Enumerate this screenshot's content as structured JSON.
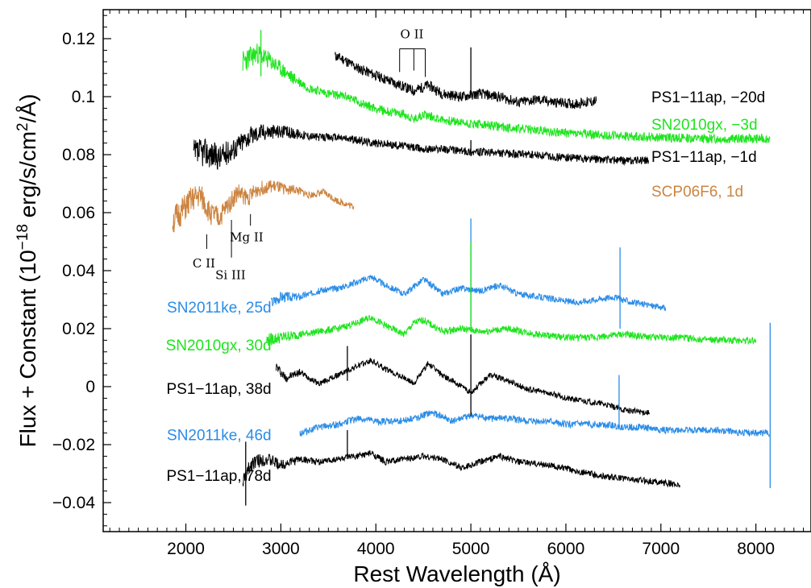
{
  "chart_data": {
    "type": "line",
    "xlabel": "Rest Wavelength (Å)",
    "ylabel": "Flux + Constant (10",
    "ylabel_exp": "−18",
    "ylabel_tail": " erg/s/cm",
    "ylabel_exp2": "2",
    "ylabel_end": "/Å)",
    "xlim": [
      1130,
      8580
    ],
    "ylim": [
      -0.05,
      0.13
    ],
    "x_ticks": [
      2000,
      3000,
      4000,
      5000,
      6000,
      7000,
      8000
    ],
    "x_tick_labels": [
      "2000",
      "3000",
      "4000",
      "5000",
      "6000",
      "7000",
      "8000"
    ],
    "y_ticks": [
      -0.04,
      -0.02,
      0,
      0.02,
      0.04,
      0.06,
      0.08,
      0.1,
      0.12
    ],
    "y_tick_labels": [
      "−0.04",
      "−0.02",
      "0",
      "0.02",
      "0.04",
      "0.06",
      "0.08",
      "0.1",
      "0.12"
    ],
    "colors": {
      "black": "#000000",
      "green": "#1ee41e",
      "blue": "#2a8ce6",
      "orange": "#cc8440"
    },
    "series": [
      {
        "name": "PS1−11ap, −20d",
        "color": "#000000",
        "noise": 0.0018,
        "seed": 11,
        "x": [
          3570,
          3650,
          3800,
          3950,
          4100,
          4250,
          4400,
          4550,
          4700,
          4900,
          5100,
          5300,
          5500,
          5700,
          5900,
          6100,
          6320
        ],
        "y": [
          0.114,
          0.113,
          0.11,
          0.108,
          0.106,
          0.104,
          0.102,
          0.104,
          0.101,
          0.1,
          0.101,
          0.1,
          0.098,
          0.099,
          0.098,
          0.0975,
          0.0985
        ]
      },
      {
        "name": "SN2010gx, −3d",
        "color": "#1ee41e",
        "noise": 0.0016,
        "seed": 23,
        "x": [
          2600,
          2650,
          2750,
          2900,
          3100,
          3300,
          3500,
          3700,
          3900,
          4100,
          4300,
          4400,
          4500,
          4700,
          4900,
          5200,
          5500,
          6000,
          6500,
          7000,
          7500,
          8000,
          8150
        ],
        "y": [
          0.112,
          0.113,
          0.115,
          0.112,
          0.107,
          0.103,
          0.101,
          0.1,
          0.097,
          0.095,
          0.094,
          0.092,
          0.094,
          0.092,
          0.091,
          0.09,
          0.089,
          0.0875,
          0.0865,
          0.086,
          0.0855,
          0.0855,
          0.0855
        ]
      },
      {
        "name": "PS1−11ap, −1d",
        "color": "#000000",
        "noise": 0.0014,
        "seed": 37,
        "x": [
          2080,
          2200,
          2350,
          2500,
          2650,
          2800,
          3000,
          3200,
          3400,
          3600,
          3800,
          4000,
          4300,
          4500,
          4700,
          5000,
          5300,
          5600,
          6000,
          6300,
          6600,
          6870
        ],
        "y": [
          0.08,
          0.081,
          0.079,
          0.082,
          0.086,
          0.088,
          0.088,
          0.087,
          0.086,
          0.086,
          0.085,
          0.084,
          0.083,
          0.082,
          0.082,
          0.081,
          0.0805,
          0.08,
          0.079,
          0.0785,
          0.078,
          0.078
        ]
      },
      {
        "name": "SCP06F6, 1d",
        "color": "#cc8440",
        "noise": 0.0012,
        "seed": 51,
        "x": [
          1860,
          1950,
          2050,
          2150,
          2250,
          2350,
          2450,
          2550,
          2650,
          2750,
          2850,
          2950,
          3050,
          3150,
          3300,
          3450,
          3600,
          3770
        ],
        "y": [
          0.057,
          0.06,
          0.064,
          0.066,
          0.06,
          0.058,
          0.063,
          0.067,
          0.065,
          0.068,
          0.069,
          0.069,
          0.068,
          0.068,
          0.066,
          0.067,
          0.064,
          0.062
        ]
      },
      {
        "name": "SN2011ke, 25d",
        "color": "#2a8ce6",
        "noise": 0.0011,
        "seed": 67,
        "x": [
          2900,
          3000,
          3200,
          3400,
          3600,
          3800,
          3950,
          4100,
          4300,
          4500,
          4700,
          4900,
          5100,
          5300,
          5500,
          5700,
          5900,
          6100,
          6300,
          6500,
          6700,
          6900,
          7050
        ],
        "y": [
          0.029,
          0.031,
          0.031,
          0.033,
          0.034,
          0.036,
          0.038,
          0.035,
          0.032,
          0.037,
          0.032,
          0.034,
          0.033,
          0.035,
          0.032,
          0.031,
          0.03,
          0.029,
          0.03,
          0.031,
          0.029,
          0.028,
          0.027
        ]
      },
      {
        "name": "SN2010gx, 30d",
        "color": "#1ee41e",
        "noise": 0.0012,
        "seed": 79,
        "x": [
          2850,
          3000,
          3200,
          3400,
          3600,
          3800,
          3950,
          4100,
          4300,
          4400,
          4500,
          4700,
          4900,
          5100,
          5400,
          5700,
          6000,
          6300,
          6600,
          6900,
          7200,
          7500,
          7800,
          8000
        ],
        "y": [
          0.016,
          0.017,
          0.018,
          0.019,
          0.02,
          0.022,
          0.024,
          0.021,
          0.018,
          0.022,
          0.023,
          0.019,
          0.02,
          0.019,
          0.02,
          0.018,
          0.017,
          0.017,
          0.018,
          0.017,
          0.017,
          0.016,
          0.016,
          0.016
        ]
      },
      {
        "name": "PS1−11ap, 38d",
        "color": "#000000",
        "noise": 0.001,
        "seed": 97,
        "x": [
          2950,
          3050,
          3200,
          3400,
          3600,
          3800,
          3950,
          4100,
          4300,
          4400,
          4550,
          4700,
          4850,
          5000,
          5200,
          5400,
          5600,
          5800,
          6000,
          6200,
          6400,
          6600,
          6880
        ],
        "y": [
          0.007,
          0.003,
          0.005,
          0.001,
          0.004,
          0.007,
          0.009,
          0.006,
          0.003,
          0.001,
          0.008,
          0.004,
          0.001,
          -0.002,
          0.004,
          0.002,
          -0.001,
          -0.002,
          -0.004,
          -0.005,
          -0.006,
          -0.008,
          -0.009
        ]
      },
      {
        "name": "SN2011ke, 46d",
        "color": "#2a8ce6",
        "noise": 0.0012,
        "seed": 113,
        "x": [
          3200,
          3400,
          3600,
          3800,
          4000,
          4200,
          4400,
          4600,
          4800,
          5000,
          5200,
          5400,
          5600,
          5800,
          6000,
          6200,
          6400,
          6600,
          6800,
          7000,
          7300,
          7600,
          7900,
          8150
        ],
        "y": [
          -0.016,
          -0.014,
          -0.013,
          -0.011,
          -0.012,
          -0.012,
          -0.011,
          -0.009,
          -0.012,
          -0.01,
          -0.011,
          -0.011,
          -0.012,
          -0.012,
          -0.013,
          -0.013,
          -0.013,
          -0.014,
          -0.014,
          -0.015,
          -0.015,
          -0.015,
          -0.016,
          -0.016
        ]
      },
      {
        "name": "PS1−11ap, 78d",
        "color": "#000000",
        "noise": 0.0011,
        "seed": 131,
        "x": [
          2600,
          2700,
          2850,
          3000,
          3200,
          3400,
          3600,
          3800,
          3950,
          4100,
          4300,
          4500,
          4700,
          4900,
          5100,
          5300,
          5500,
          5800,
          6100,
          6400,
          6700,
          7000,
          7200
        ],
        "y": [
          -0.033,
          -0.026,
          -0.025,
          -0.027,
          -0.025,
          -0.026,
          -0.025,
          -0.024,
          -0.023,
          -0.026,
          -0.025,
          -0.024,
          -0.025,
          -0.028,
          -0.026,
          -0.024,
          -0.026,
          -0.027,
          -0.029,
          -0.031,
          -0.032,
          -0.033,
          -0.034
        ]
      }
    ],
    "spikes": [
      {
        "series": 0,
        "x": 5000,
        "y0": 0.101,
        "y1": 0.117
      },
      {
        "series": 1,
        "x": 2790,
        "y0": 0.107,
        "y1": 0.123
      },
      {
        "series": 2,
        "x": 5000,
        "y0": 0.0795,
        "y1": 0.085
      },
      {
        "series": 4,
        "x": 5000,
        "y0": 0.02,
        "y1": 0.058
      },
      {
        "series": 4,
        "x": 6570,
        "y0": 0.02,
        "y1": 0.048
      },
      {
        "series": 5,
        "x": 5000,
        "y0": 0.019,
        "y1": 0.05
      },
      {
        "series": 6,
        "x": 5000,
        "y0": -0.01,
        "y1": 0.018
      },
      {
        "series": 6,
        "x": 3700,
        "y0": 0.002,
        "y1": 0.014
      },
      {
        "series": 7,
        "x": 6560,
        "y0": -0.014,
        "y1": 0.004
      },
      {
        "series": 7,
        "x": 8150,
        "y0": -0.035,
        "y1": 0.022
      },
      {
        "series": 8,
        "x": 3700,
        "y0": -0.025,
        "y1": -0.015
      },
      {
        "series": 8,
        "x": 2630,
        "y0": -0.041,
        "y1": -0.019
      }
    ],
    "labels": [
      {
        "text": "PS1−11ap, −20d",
        "color": "#000000",
        "x": 6900,
        "y": 0.1,
        "anchor": "start"
      },
      {
        "text": "SN2010gx, −3d",
        "color": "#1ee41e",
        "x": 6900,
        "y": 0.0905,
        "anchor": "start"
      },
      {
        "text": "PS1−11ap, −1d",
        "color": "#000000",
        "x": 6900,
        "y": 0.0795,
        "anchor": "start"
      },
      {
        "text": "SCP06F6, 1d",
        "color": "#cc8440",
        "x": 6900,
        "y": 0.0675,
        "anchor": "start"
      },
      {
        "text": "SN2011ke, 25d",
        "color": "#2a8ce6",
        "x": 2900,
        "y": 0.0275,
        "anchor": "end"
      },
      {
        "text": "SN2010gx, 30d",
        "color": "#1ee41e",
        "x": 2900,
        "y": 0.0145,
        "anchor": "end"
      },
      {
        "text": "PS1−11ap, 38d",
        "color": "#000000",
        "x": 2900,
        "y": -0.0005,
        "anchor": "end"
      },
      {
        "text": "SN2011ke, 46d",
        "color": "#2a8ce6",
        "x": 2900,
        "y": -0.0165,
        "anchor": "end"
      },
      {
        "text": "PS1−11ap, 78d",
        "color": "#000000",
        "x": 2900,
        "y": -0.0305,
        "anchor": "end"
      }
    ],
    "line_ids": [
      {
        "text": "O II",
        "x": 4380,
        "y": 0.1215,
        "ticks": [
          4250,
          4400,
          4520
        ],
        "bracket_y": 0.1165,
        "tick_bottom": [
          0.1085,
          0.109,
          0.1068
        ]
      },
      {
        "text": "C II",
        "x": 2190,
        "y": 0.0425,
        "tick_x": 2220,
        "tick_y": [
          0.0525,
          0.0475
        ]
      },
      {
        "text": "Si III",
        "x": 2470,
        "y": 0.0385,
        "tick_x": 2480,
        "tick_y": [
          0.0575,
          0.0445
        ]
      },
      {
        "text": "Mg II",
        "x": 2640,
        "y": 0.0515,
        "tick_x": 2680,
        "tick_y": [
          0.0595,
          0.0555
        ]
      }
    ]
  }
}
